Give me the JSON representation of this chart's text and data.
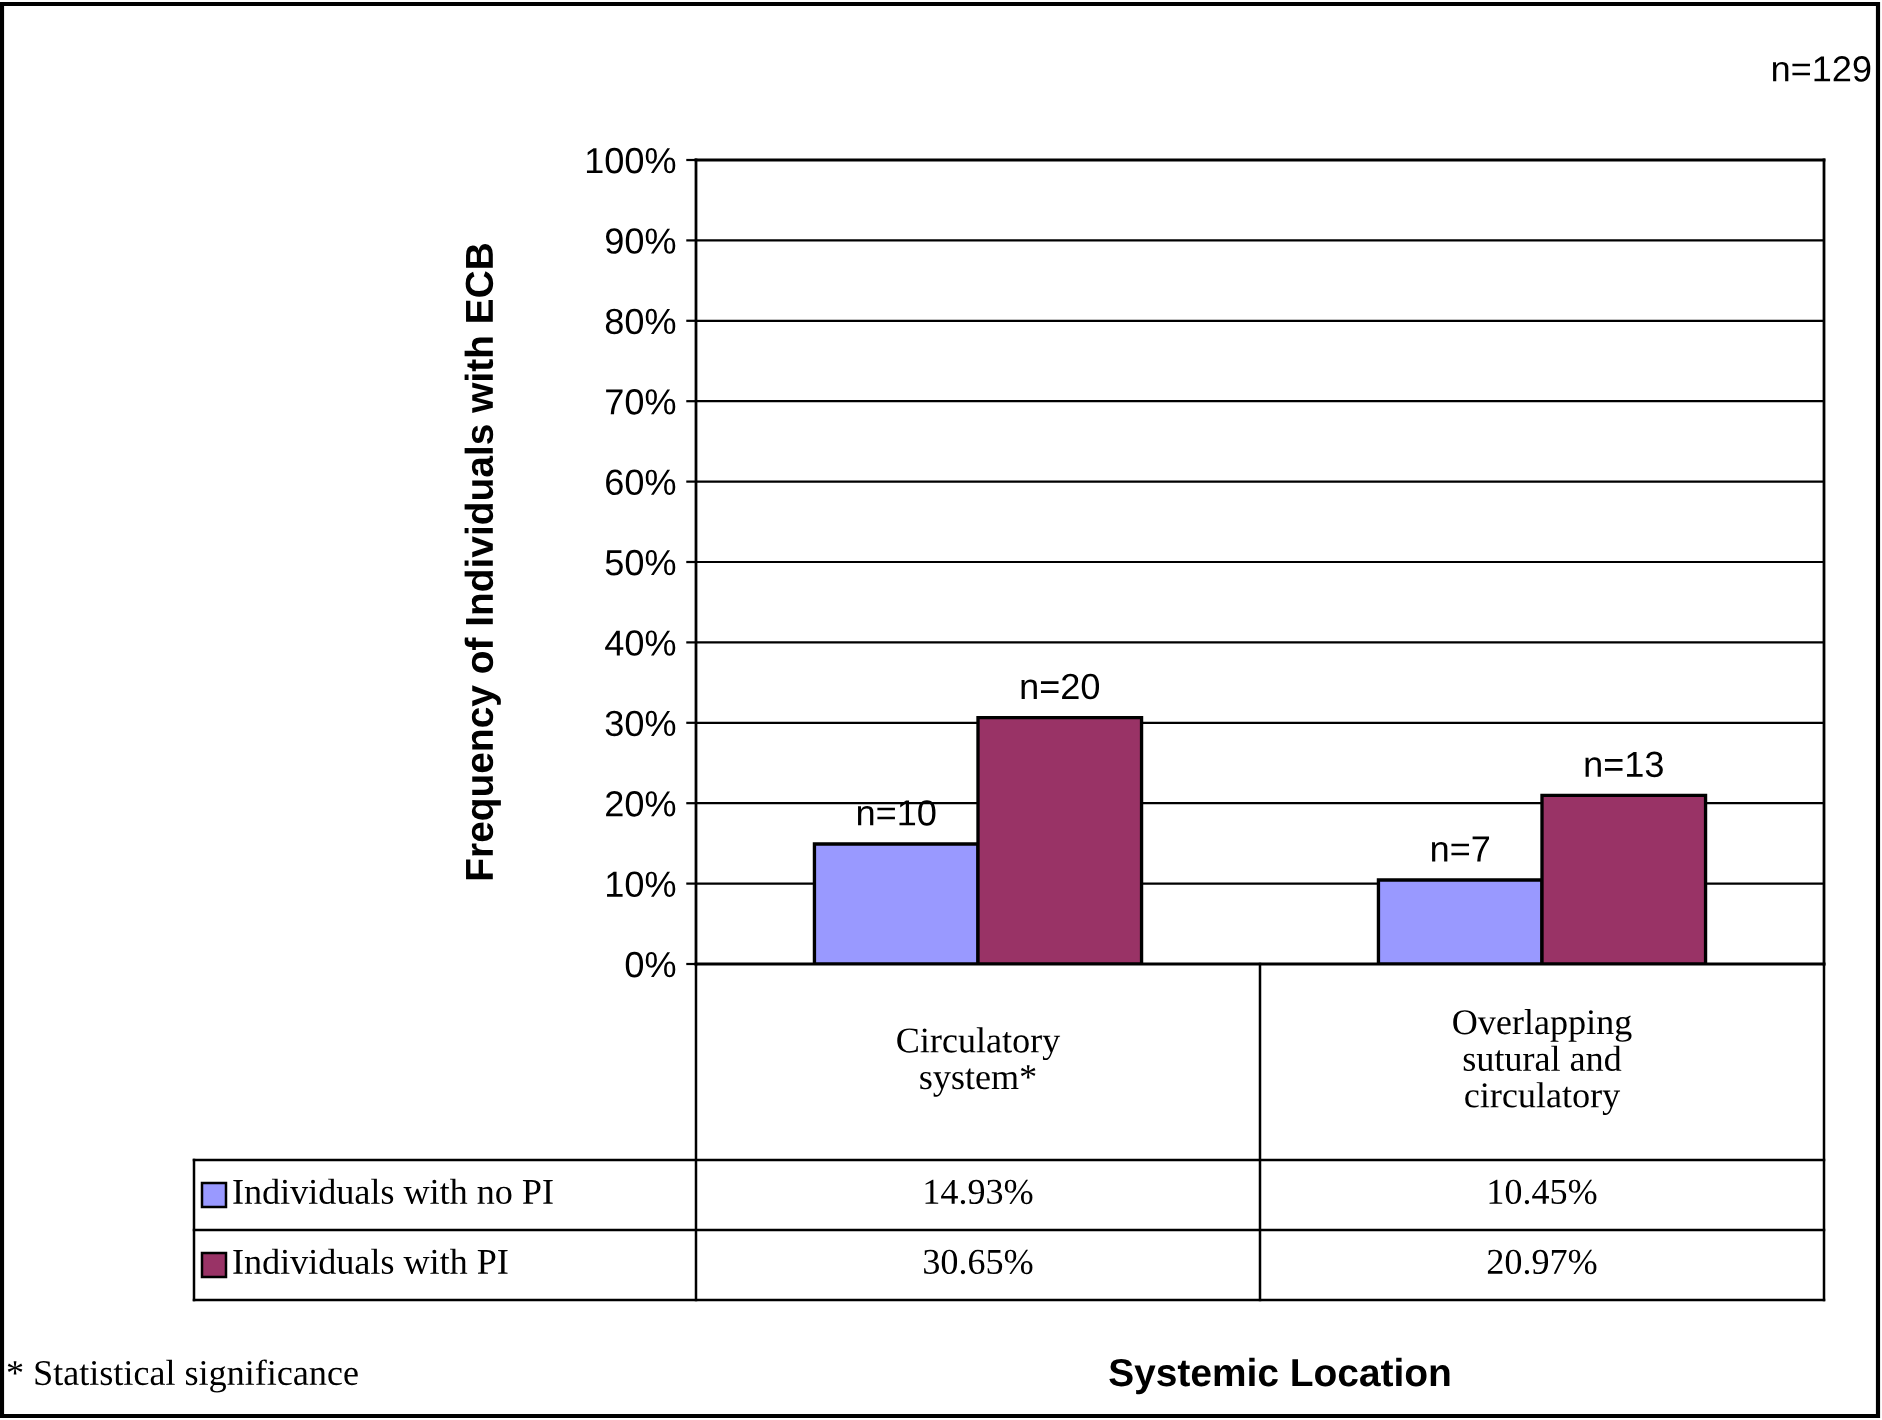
{
  "chart_data": {
    "type": "bar",
    "ylabel": "Frequency of Individuals with ECB",
    "categories": [
      "Circulatory\nsystem*",
      "Overlapping\nsutural and\ncirculatory"
    ],
    "series": [
      {
        "name": "Individuals with no PI",
        "color": "#9999ff",
        "values": [
          14.93,
          10.45
        ],
        "value_labels": [
          "14.93%",
          "10.45%"
        ]
      },
      {
        "name": "Individuals with PI",
        "color": "#993366",
        "values": [
          30.65,
          20.97
        ],
        "value_labels": [
          "30.65%",
          "20.97%"
        ]
      }
    ],
    "ylim": [
      0,
      100
    ],
    "yticks": [
      {
        "value": 0,
        "label": "0%"
      },
      {
        "value": 10,
        "label": "10%"
      },
      {
        "value": 20,
        "label": "20%"
      },
      {
        "value": 30,
        "label": "30%"
      },
      {
        "value": 40,
        "label": "40%"
      },
      {
        "value": 50,
        "label": "50%"
      },
      {
        "value": 60,
        "label": "60%"
      },
      {
        "value": 70,
        "label": "70%"
      },
      {
        "value": 80,
        "label": "80%"
      },
      {
        "value": 90,
        "label": "90%"
      },
      {
        "value": 100,
        "label": "100%"
      }
    ],
    "grid": "y",
    "legend": "bottom left",
    "annotations": [
      "n=129",
      "* Statistical significance",
      "Systemic Location",
      {
        "text": "n=10",
        "x": "Circulatory\nsystem*",
        "y": 14.93
      },
      {
        "text": "n=20",
        "x": "Circulatory\nsystem*",
        "y": 30.65
      },
      {
        "text": "n=7",
        "x": "Overlapping\nsutural and\ncirculatory",
        "y": 10.45
      },
      {
        "text": "n=13",
        "x": "Overlapping\nsutural and\ncirculatory",
        "y": 20.97
      }
    ]
  }
}
